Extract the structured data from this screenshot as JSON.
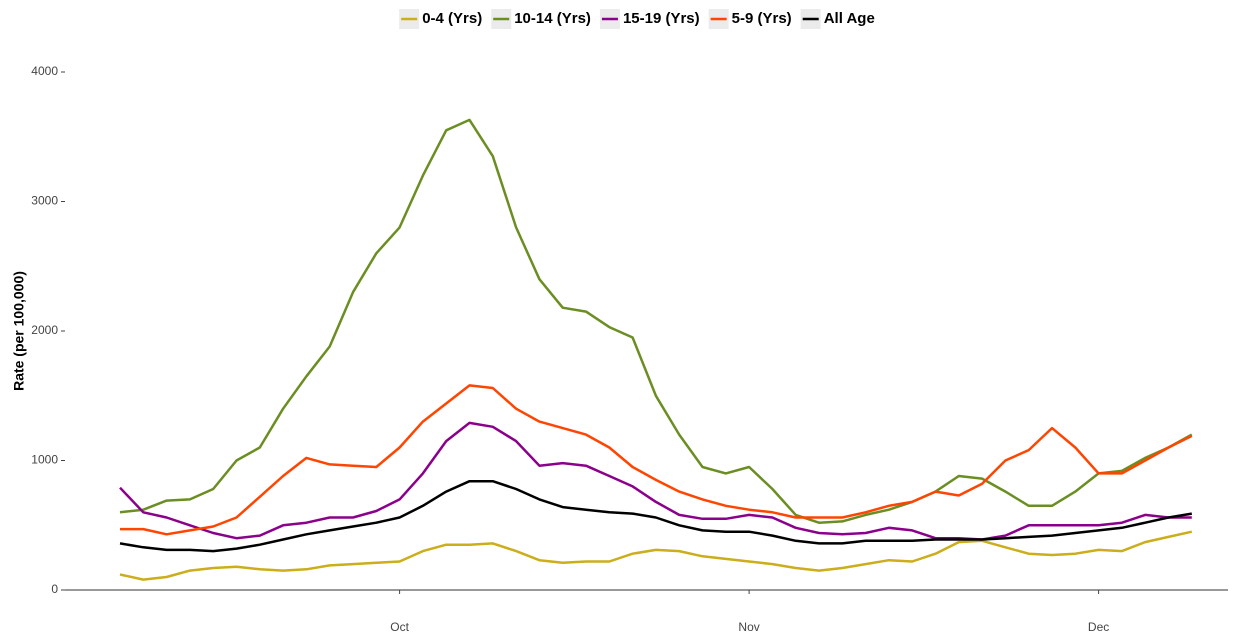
{
  "chart_data": {
    "type": "line",
    "y_label": "Rate (per 100,000)",
    "categories": [
      null,
      null,
      null,
      null,
      null,
      null,
      null,
      null,
      null,
      null,
      null,
      null,
      "Oct",
      null,
      null,
      null,
      null,
      null,
      null,
      null,
      null,
      null,
      null,
      null,
      null,
      null,
      null,
      "Nov",
      null,
      null,
      null,
      null,
      null,
      null,
      null,
      null,
      null,
      null,
      null,
      null,
      null,
      null,
      "Dec",
      null,
      null,
      null,
      null
    ],
    "ylim": [
      0,
      4000
    ],
    "yticks": [
      0,
      1000,
      2000,
      3000,
      4000
    ],
    "grid": false,
    "legend": "top",
    "series": [
      {
        "name": "0-4 (Yrs)",
        "color": "#ccad1a",
        "values": [
          120,
          80,
          100,
          150,
          170,
          180,
          160,
          150,
          160,
          190,
          200,
          210,
          220,
          300,
          350,
          350,
          360,
          300,
          230,
          210,
          220,
          220,
          280,
          310,
          300,
          260,
          240,
          220,
          200,
          170,
          150,
          170,
          200,
          230,
          220,
          280,
          370,
          380,
          330,
          280,
          270,
          280,
          310,
          300,
          370,
          410,
          450
        ]
      },
      {
        "name": "10-14 (Yrs)",
        "color": "#6b8e23",
        "values": [
          600,
          620,
          690,
          700,
          780,
          1000,
          1100,
          1400,
          1650,
          1880,
          2300,
          2600,
          2800,
          3200,
          3550,
          3630,
          3350,
          2800,
          2400,
          2180,
          2150,
          2030,
          1950,
          1500,
          1200,
          950,
          900,
          950,
          780,
          580,
          520,
          530,
          580,
          620,
          680,
          760,
          880,
          860,
          760,
          650,
          650,
          760,
          900,
          920,
          1020,
          1100,
          1200
        ]
      },
      {
        "name": "15-19 (Yrs)",
        "color": "#8b008b",
        "values": [
          790,
          600,
          560,
          500,
          440,
          400,
          420,
          500,
          520,
          560,
          560,
          610,
          700,
          900,
          1150,
          1290,
          1260,
          1150,
          960,
          980,
          960,
          880,
          800,
          680,
          580,
          550,
          550,
          580,
          560,
          480,
          440,
          430,
          440,
          480,
          460,
          400,
          400,
          390,
          420,
          500,
          500,
          500,
          500,
          520,
          580,
          560,
          560
        ]
      },
      {
        "name": "5-9 (Yrs)",
        "color": "#ff4500",
        "values": [
          470,
          470,
          430,
          460,
          490,
          560,
          720,
          880,
          1020,
          970,
          960,
          950,
          1100,
          1300,
          1440,
          1580,
          1560,
          1400,
          1300,
          1250,
          1200,
          1100,
          950,
          850,
          760,
          700,
          650,
          620,
          600,
          560,
          560,
          560,
          600,
          650,
          680,
          760,
          730,
          820,
          1000,
          1080,
          1250,
          1100,
          900,
          900,
          1000,
          1100,
          1190
        ]
      },
      {
        "name": "All Age",
        "color": "#000000",
        "values": [
          360,
          330,
          310,
          310,
          300,
          320,
          350,
          390,
          430,
          460,
          490,
          520,
          560,
          650,
          760,
          840,
          840,
          780,
          700,
          640,
          620,
          600,
          590,
          560,
          500,
          460,
          450,
          450,
          420,
          380,
          360,
          360,
          380,
          380,
          380,
          390,
          390,
          390,
          400,
          410,
          420,
          440,
          460,
          480,
          520,
          560,
          590
        ]
      }
    ]
  }
}
